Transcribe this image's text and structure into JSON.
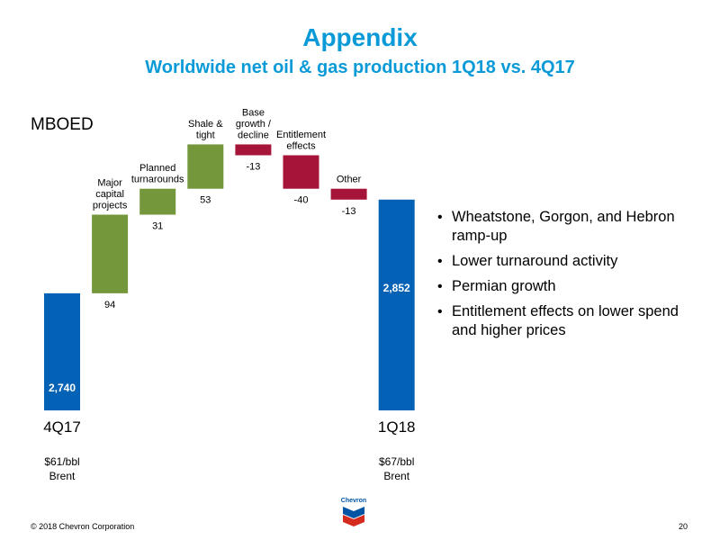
{
  "slide": {
    "title": "Appendix",
    "subtitle": "Worldwide net oil & gas production 1Q18 vs. 4Q17",
    "unit_label": "MBOED",
    "bullets": [
      "Wheatstone, Gorgon, and Hebron ramp-up",
      "Lower turnaround activity",
      "Permian growth",
      "Entitlement effects on lower spend and higher prices"
    ],
    "logo_text": "Chevron",
    "footer_left": "© 2018 Chevron Corporation",
    "page_number": "20"
  },
  "colors": {
    "title": "#0b9ad8",
    "total": "#0462b6",
    "increase": "#73973a",
    "decrease": "#a6143a"
  },
  "chart_data": {
    "type": "waterfall",
    "ylim": [
      2600,
      2940
    ],
    "bars": [
      {
        "kind": "total",
        "label": [
          "4Q17"
        ],
        "value": 2740,
        "display": "2,740",
        "sublabel": [
          "$61/bbl",
          "Brent"
        ]
      },
      {
        "kind": "delta",
        "label": [
          "Major",
          "capital",
          "projects"
        ],
        "value": 94,
        "display": "94"
      },
      {
        "kind": "delta",
        "label": [
          "Planned",
          "turnarounds"
        ],
        "value": 31,
        "display": "31"
      },
      {
        "kind": "delta",
        "label": [
          "Shale &",
          "tight"
        ],
        "value": 53,
        "display": "53"
      },
      {
        "kind": "delta",
        "label": [
          "Base",
          "growth /",
          "decline"
        ],
        "value": -13,
        "display": "-13"
      },
      {
        "kind": "delta",
        "label": [
          "Entitlement",
          "effects"
        ],
        "value": -40,
        "display": "-40"
      },
      {
        "kind": "delta",
        "label": [
          "Other"
        ],
        "value": -13,
        "display": "-13"
      },
      {
        "kind": "total",
        "label": [
          "1Q18"
        ],
        "value": 2852,
        "display": "2,852",
        "sublabel": [
          "$67/bbl",
          "Brent"
        ]
      }
    ]
  }
}
